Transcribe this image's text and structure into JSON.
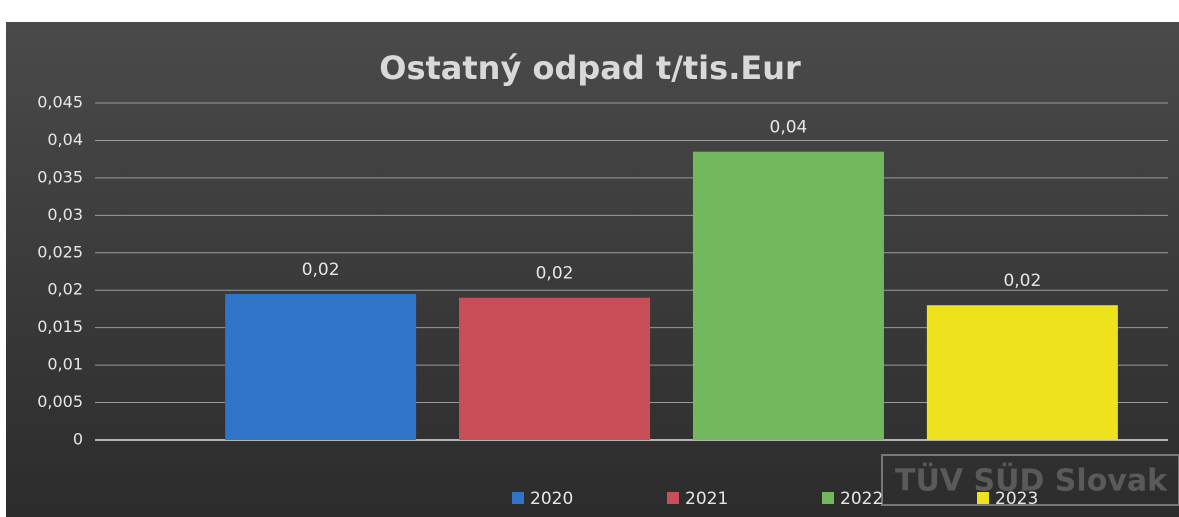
{
  "chart_data": {
    "type": "bar",
    "title": "Ostatný odpad t/tis.Eur",
    "categories": [
      null
    ],
    "series": [
      {
        "name": "2020",
        "color": "#2f74c6",
        "values": [
          0.0195
        ],
        "value_labels": [
          "0,02"
        ]
      },
      {
        "name": "2021",
        "color": "#c84f58",
        "values": [
          0.019
        ],
        "value_labels": [
          "0,02"
        ]
      },
      {
        "name": "2022",
        "color": "#72b85c",
        "values": [
          0.0385
        ],
        "value_labels": [
          "0,04"
        ]
      },
      {
        "name": "2023",
        "color": "#eee21e",
        "values": [
          0.018
        ],
        "value_labels": [
          "0,02"
        ]
      }
    ],
    "ylim": [
      0,
      0.045
    ],
    "yticks": [
      0,
      {
        "value": 0.005,
        "label": "0,005"
      },
      {
        "value": 0.01,
        "label": "0,01"
      },
      {
        "value": 0.015,
        "label": "0,015"
      },
      {
        "value": 0.02,
        "label": "0,02"
      },
      {
        "value": 0.025,
        "label": "0,025"
      },
      {
        "value": 0.03,
        "label": "0,03"
      },
      {
        "value": 0.035,
        "label": "0,035"
      },
      {
        "value": 0.04,
        "label": "0,04"
      },
      {
        "value": 0.045,
        "label": "0,045"
      }
    ],
    "grid": true,
    "legend": "bottom",
    "annotations": [
      "TÜV SÜD Slovak"
    ]
  }
}
